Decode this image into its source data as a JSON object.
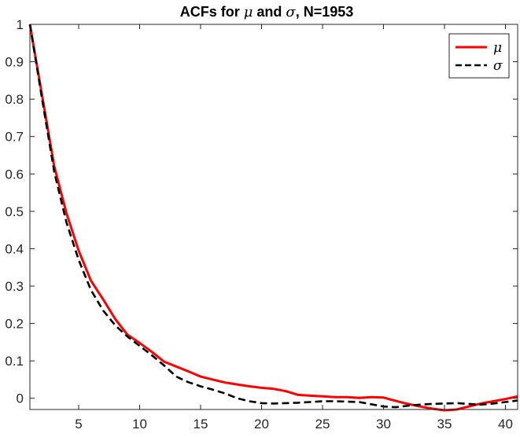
{
  "chart_data": {
    "type": "line",
    "title_parts": [
      "ACFs for ",
      "μ",
      " and ",
      "σ",
      ", N=1953"
    ],
    "xlabel": "",
    "ylabel": "",
    "xlim": [
      1,
      41
    ],
    "ylim": [
      -0.03,
      1.0
    ],
    "xticks": [
      5,
      10,
      15,
      20,
      25,
      30,
      35,
      40
    ],
    "yticks": [
      0,
      0.1,
      0.2,
      0.3,
      0.4,
      0.5,
      0.6,
      0.7,
      0.8,
      0.9,
      1
    ],
    "grid": false,
    "legend_position": "top-right",
    "x": [
      1,
      2,
      3,
      4,
      5,
      6,
      7,
      8,
      9,
      10,
      11,
      12,
      13,
      14,
      15,
      16,
      17,
      18,
      19,
      20,
      21,
      22,
      23,
      24,
      25,
      26,
      27,
      28,
      29,
      30,
      31,
      32,
      33,
      34,
      35,
      36,
      37,
      38,
      39,
      40,
      41
    ],
    "series": [
      {
        "name": "μ",
        "color": "#ff0000",
        "dash": "solid",
        "values": [
          1.0,
          0.81,
          0.62,
          0.495,
          0.395,
          0.315,
          0.265,
          0.212,
          0.17,
          0.148,
          0.124,
          0.098,
          0.085,
          0.072,
          0.058,
          0.05,
          0.042,
          0.037,
          0.032,
          0.028,
          0.025,
          0.019,
          0.009,
          0.007,
          0.005,
          0.003,
          0.003,
          0.001,
          0.003,
          0.002,
          -0.007,
          -0.015,
          -0.022,
          -0.028,
          -0.032,
          -0.03,
          -0.022,
          -0.014,
          -0.008,
          -0.002,
          0.005
        ]
      },
      {
        "name": "σ",
        "color": "#000000",
        "dash": "dashed",
        "values": [
          1.0,
          0.8,
          0.605,
          0.47,
          0.37,
          0.29,
          0.235,
          0.195,
          0.165,
          0.14,
          0.115,
          0.088,
          0.058,
          0.043,
          0.032,
          0.023,
          0.013,
          0.0,
          -0.008,
          -0.013,
          -0.014,
          -0.013,
          -0.012,
          -0.01,
          -0.008,
          -0.008,
          -0.009,
          -0.01,
          -0.016,
          -0.022,
          -0.024,
          -0.02,
          -0.017,
          -0.015,
          -0.014,
          -0.013,
          -0.015,
          -0.017,
          -0.014,
          -0.01,
          -0.006
        ]
      }
    ]
  }
}
